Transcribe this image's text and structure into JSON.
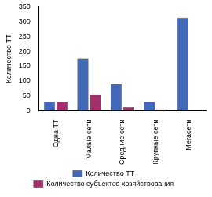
{
  "chart_data": {
    "type": "bar",
    "y_label": "Количество ТТ",
    "categories": [
      "Одна ТТ",
      "Малые сети",
      "Средние сети",
      "Крупные сети",
      "Мегасети"
    ],
    "series": [
      {
        "name": "Количество ТТ",
        "color": "#4169b8",
        "values": [
          30,
          175,
          90,
          30,
          312
        ]
      },
      {
        "name": "Количество субъектов хозяйствования",
        "color": "#a3306c",
        "values": [
          30,
          55,
          12,
          5,
          1
        ]
      }
    ],
    "ylim": [
      0,
      350
    ],
    "yticks": [
      0,
      50,
      100,
      150,
      200,
      250,
      300,
      350
    ],
    "grid": false,
    "legend": "bottom"
  }
}
